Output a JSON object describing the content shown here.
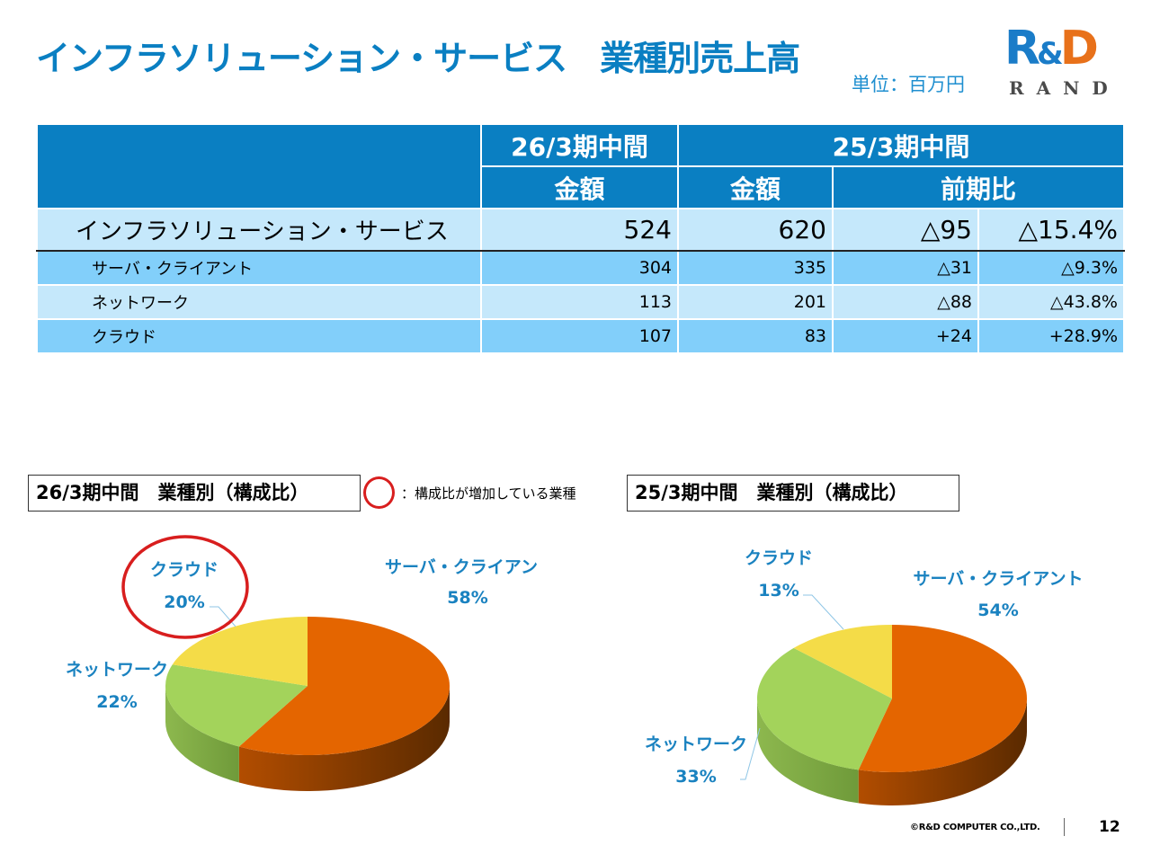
{
  "header": {
    "title": "インフラソリューション・サービス　業種別売上高",
    "unit": "単位：百万円"
  },
  "logo": {
    "r": "R",
    "amp": "&",
    "d": "D",
    "rand": "RAND"
  },
  "table": {
    "period_current": "26/3期中間",
    "period_previous": "25/3期中間",
    "col_amount": "金額",
    "col_yoy": "前期比",
    "rows": [
      {
        "label": "インフラソリューション・サービス",
        "current": "524",
        "previous": "620",
        "diff": "△95",
        "pct": "△15.4%"
      },
      {
        "label": "サーバ・クライアント",
        "current": "304",
        "previous": "335",
        "diff": "△31",
        "pct": "△9.3%"
      },
      {
        "label": "ネットワーク",
        "current": "113",
        "previous": "201",
        "diff": "△88",
        "pct": "△43.8%"
      },
      {
        "label": "クラウド",
        "current": "107",
        "previous": "83",
        "diff": "+24",
        "pct": "+28.9%"
      }
    ]
  },
  "legend": {
    "text": "：構成比が増加している業種"
  },
  "chart_data": [
    {
      "type": "pie",
      "title": "26/3期中間　業種別（構成比）",
      "categories": [
        "サーバ・クライアン",
        "ネットワーク",
        "クラウド"
      ],
      "values": [
        58,
        22,
        20
      ],
      "labels": [
        "58%",
        "22%",
        "20%"
      ],
      "colors": [
        "#e46500",
        "#a3d35b",
        "#f4dc48"
      ],
      "highlighted": "クラウド"
    },
    {
      "type": "pie",
      "title": "25/3期中間　業種別（構成比）",
      "categories": [
        "サーバ・クライアント",
        "ネットワーク",
        "クラウド"
      ],
      "values": [
        54,
        33,
        13
      ],
      "labels": [
        "54%",
        "33%",
        "13%"
      ],
      "colors": [
        "#e46500",
        "#a3d35b",
        "#f4dc48"
      ]
    }
  ],
  "footer": {
    "copyright": "©R&D COMPUTER CO.,LTD.",
    "page": "12"
  }
}
